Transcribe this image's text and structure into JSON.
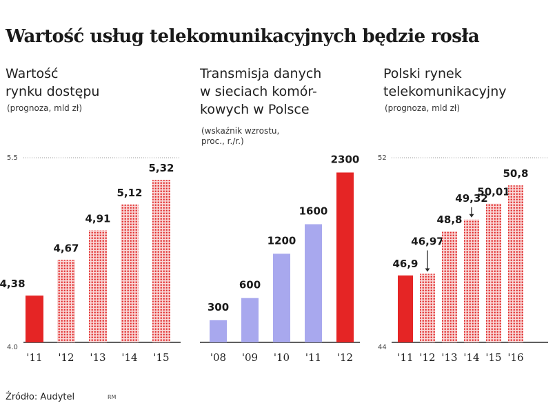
{
  "title": "Wartość usług telekomunikacyjnych będzie rosła",
  "source": "Źródło: Audytel",
  "source_tag": "RM",
  "colors": {
    "highlight": "#e52525",
    "pattern_bg": "#fadada",
    "pattern_dot": "#e02a2a",
    "lavender": "#a8a8ee",
    "axis": "#2a2a2a",
    "grid": "#9a9a9a"
  },
  "chart_data": [
    {
      "type": "bar",
      "subtitle_lines": [
        "Wartość",
        "rynku dostępu"
      ],
      "note_lines": [
        "(prognoza, mld zł)"
      ],
      "categories": [
        "'11",
        "'12",
        "'13",
        "'14",
        "'15"
      ],
      "values": [
        4.38,
        4.67,
        4.91,
        5.12,
        5.32
      ],
      "value_labels": [
        "4,38",
        "4,67",
        "4,91",
        "5,12",
        "5,32"
      ],
      "styles": [
        "solid",
        "pattern",
        "pattern",
        "pattern",
        "pattern"
      ],
      "ylim": [
        4.0,
        5.5
      ],
      "ytick_labels": [
        "5.5",
        "4.0"
      ]
    },
    {
      "type": "bar",
      "subtitle_lines": [
        "Transmisja danych",
        "w sieciach komór-",
        "kowych w Polsce"
      ],
      "note_lines": [
        "(wskaźnik wzrostu,",
        "proc., r./r.)"
      ],
      "categories": [
        "'08",
        "'09",
        "'10",
        "'11",
        "'12"
      ],
      "values": [
        300,
        600,
        1200,
        1600,
        2300
      ],
      "value_labels": [
        "300",
        "600",
        "1200",
        "1600",
        "2300"
      ],
      "styles": [
        "lavender",
        "lavender",
        "lavender",
        "lavender",
        "solid"
      ],
      "ylim": [
        0,
        2500
      ],
      "ytick_labels": []
    },
    {
      "type": "bar",
      "subtitle_lines": [
        "Polski rynek",
        "telekomunikacyjny"
      ],
      "note_lines": [
        "(prognoza, mld zł)"
      ],
      "categories": [
        "'11",
        "'12",
        "'13",
        "'14",
        "'15",
        "'16"
      ],
      "values": [
        46.9,
        46.97,
        48.8,
        49.32,
        50.01,
        50.8
      ],
      "value_labels": [
        "46,9",
        "46,97",
        "48,8",
        "49,32",
        "50,01",
        "50,8"
      ],
      "styles": [
        "solid",
        "pattern",
        "pattern",
        "pattern",
        "pattern",
        "pattern"
      ],
      "ylim": [
        44,
        52
      ],
      "ytick_labels": [
        "52",
        "44"
      ]
    }
  ]
}
